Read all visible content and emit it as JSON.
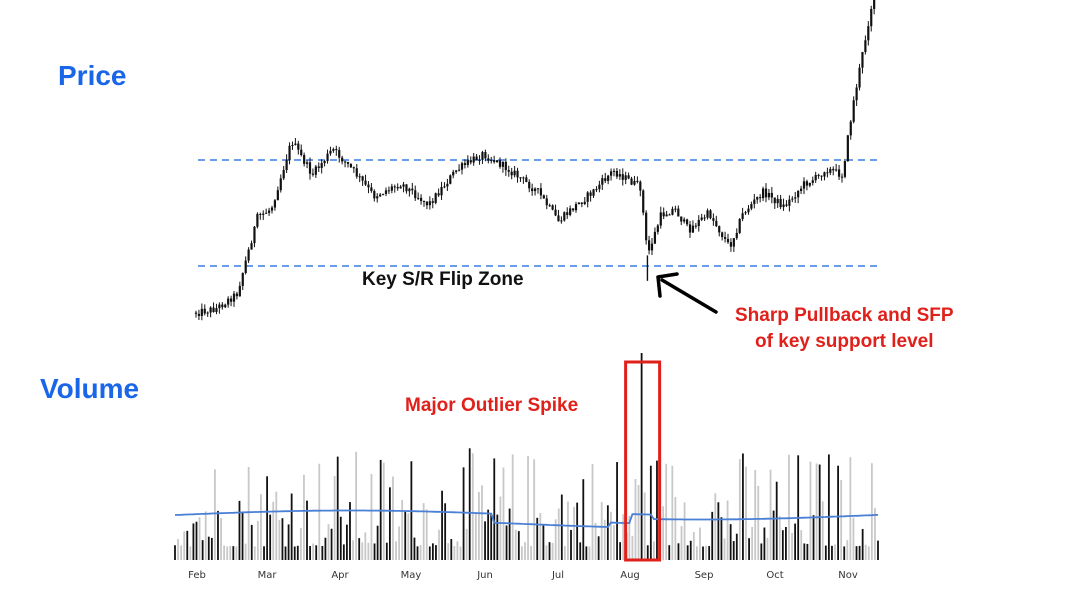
{
  "panels": {
    "price_title": "Price",
    "volume_title": "Volume"
  },
  "annotations": {
    "flip_zone": "Key S/R Flip Zone",
    "sfp_line1": "Sharp Pullback and SFP",
    "sfp_line2": "of key support level",
    "spike": "Major Outlier Spike"
  },
  "colors": {
    "title": "#1a66e8",
    "annotation_red": "#e0201b",
    "sr_line": "#3b7de0",
    "volume_ma": "#4a7fd6",
    "candle": "#111111",
    "volume_dark": "#111111",
    "volume_light": "#c8c8c8"
  },
  "chart_data": [
    {
      "type": "line",
      "title": "Price",
      "note_visual": "daily candlesticks, no price axis labels",
      "x": [
        "Feb",
        "Mar",
        "Apr",
        "May",
        "Jun",
        "Jul",
        "Aug",
        "Sep",
        "Oct",
        "Nov"
      ],
      "price_path_relative": [
        [
          0.0,
          0.13
        ],
        [
          0.03,
          0.15
        ],
        [
          0.06,
          0.22
        ],
        [
          0.09,
          0.58
        ],
        [
          0.11,
          0.62
        ],
        [
          0.14,
          0.94
        ],
        [
          0.17,
          0.78
        ],
        [
          0.2,
          0.9
        ],
        [
          0.23,
          0.8
        ],
        [
          0.26,
          0.68
        ],
        [
          0.3,
          0.74
        ],
        [
          0.34,
          0.64
        ],
        [
          0.38,
          0.8
        ],
        [
          0.42,
          0.88
        ],
        [
          0.46,
          0.8
        ],
        [
          0.5,
          0.7
        ],
        [
          0.53,
          0.56
        ],
        [
          0.55,
          0.62
        ],
        [
          0.58,
          0.7
        ],
        [
          0.61,
          0.8
        ],
        [
          0.65,
          0.72
        ],
        [
          0.66,
          0.4
        ],
        [
          0.68,
          0.59
        ],
        [
          0.7,
          0.62
        ],
        [
          0.72,
          0.52
        ],
        [
          0.75,
          0.6
        ],
        [
          0.78,
          0.44
        ],
        [
          0.8,
          0.6
        ],
        [
          0.83,
          0.7
        ],
        [
          0.86,
          0.63
        ],
        [
          0.89,
          0.74
        ],
        [
          0.91,
          0.77
        ],
        [
          0.92,
          0.81
        ],
        [
          0.945,
          0.78
        ],
        [
          0.96,
          1.1
        ],
        [
          0.99,
          1.62
        ],
        [
          1.0,
          1.67
        ]
      ],
      "support_resistance": {
        "upper_relative": 0.85,
        "lower_relative": 0.35
      },
      "sfp_low_relative": 0.28
    },
    {
      "type": "bar",
      "title": "Volume",
      "note_visual": "daily volume bars (dark/light) with moving-average line; no axis labels",
      "x": [
        "Feb",
        "Mar",
        "Apr",
        "May",
        "Jun",
        "Jul",
        "Aug",
        "Sep",
        "Oct",
        "Nov"
      ],
      "spike_relative_to_average": 4.6,
      "highlight": "Major Outlier Spike"
    }
  ]
}
